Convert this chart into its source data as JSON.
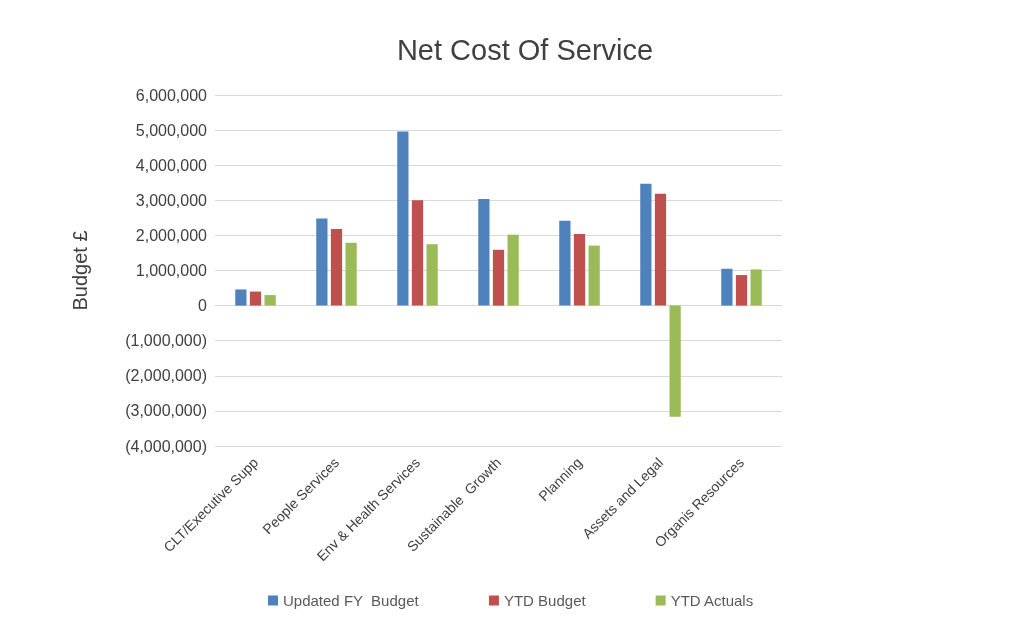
{
  "chart_data": {
    "type": "bar",
    "title": "Net Cost Of Service",
    "ylabel": "Budget £",
    "categories": [
      "CLT/Executive Supp",
      "People Services",
      "Env & Health Services",
      "Sustainable  Growth",
      "Planning",
      "Assets and Legal",
      "Organis Resources"
    ],
    "series": [
      {
        "name": "Updated FY  Budget",
        "color": "#4f81bd",
        "values": [
          460000,
          2480000,
          4960000,
          3040000,
          2420000,
          3470000,
          1050000
        ]
      },
      {
        "name": "YTD Budget",
        "color": "#c0504d",
        "values": [
          400000,
          2180000,
          3000000,
          1590000,
          2040000,
          3190000,
          870000
        ]
      },
      {
        "name": "YTD Actuals",
        "color": "#9bbb59",
        "values": [
          300000,
          1790000,
          1750000,
          2020000,
          1710000,
          -3170000,
          1030000
        ]
      }
    ],
    "ylim": [
      -4000000,
      6000000
    ],
    "yticks": [
      {
        "value": -4000000,
        "label": "(4,000,000)"
      },
      {
        "value": -3000000,
        "label": "(3,000,000)"
      },
      {
        "value": -2000000,
        "label": "(2,000,000)"
      },
      {
        "value": -1000000,
        "label": "(1,000,000)"
      },
      0,
      {
        "value": 1000000,
        "label": "1,000,000"
      },
      {
        "value": 2000000,
        "label": "2,000,000"
      },
      {
        "value": 3000000,
        "label": "3,000,000"
      },
      {
        "value": 4000000,
        "label": "4,000,000"
      },
      {
        "value": 5000000,
        "label": "5,000,000"
      },
      {
        "value": 6000000,
        "label": "6,000,000"
      }
    ],
    "grid": "y",
    "legend": "bottom"
  }
}
